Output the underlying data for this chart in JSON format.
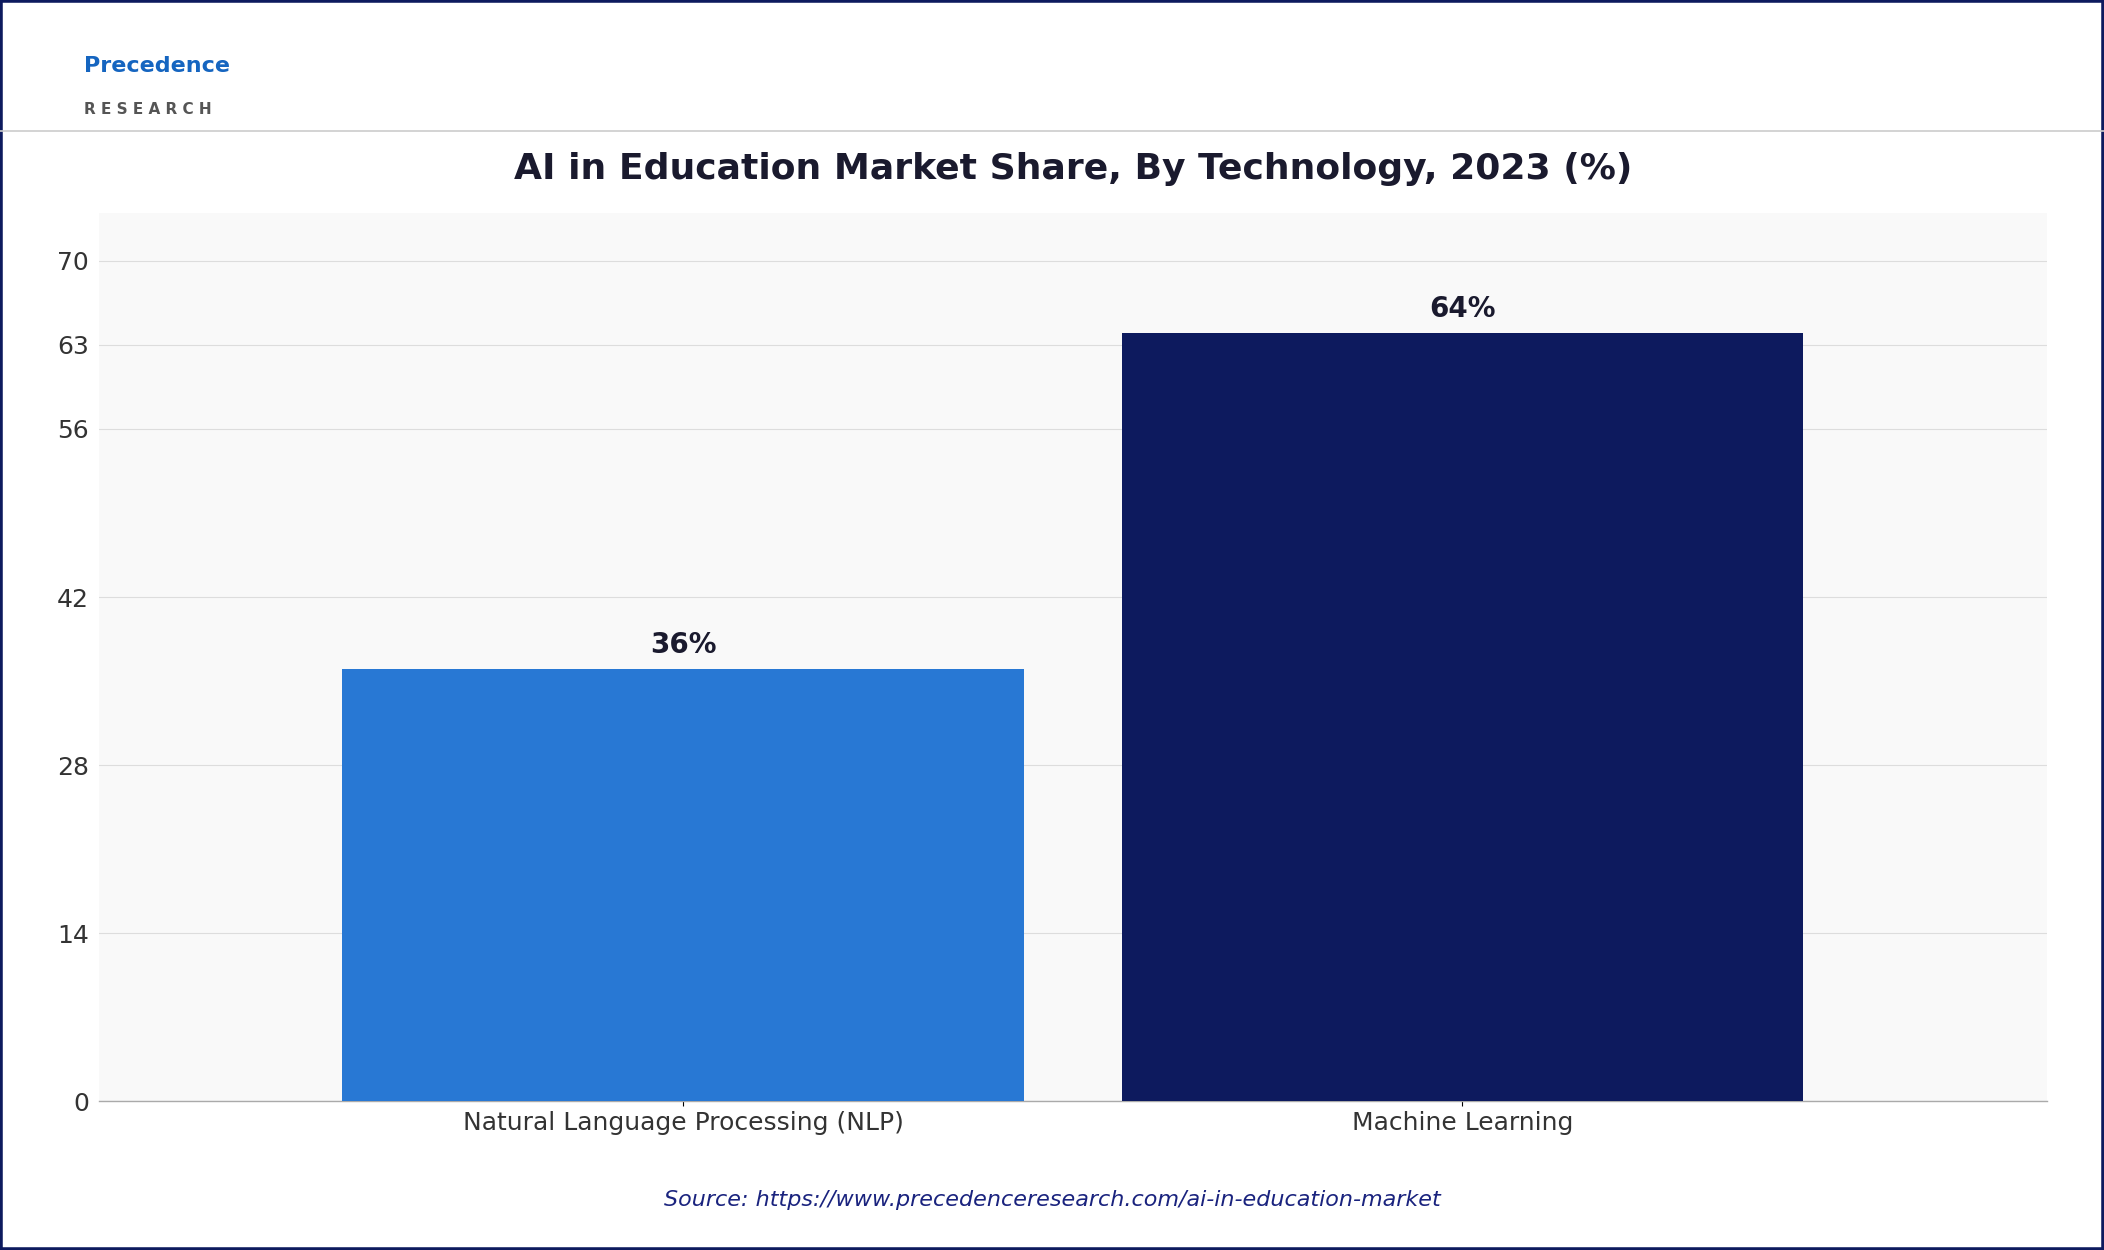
{
  "title": "AI in Education Market Share, By Technology, 2023 (%)",
  "categories": [
    "Natural Language Processing (NLP)",
    "Machine Learning"
  ],
  "values": [
    36,
    64
  ],
  "bar_colors": [
    "#2878d4",
    "#0d1a5e"
  ],
  "value_labels": [
    "36%",
    "64%"
  ],
  "yticks": [
    0,
    14,
    28,
    42,
    56,
    63,
    70
  ],
  "ylim": [
    0,
    74
  ],
  "background_color": "#ffffff",
  "plot_bg_color": "#f9f9f9",
  "grid_color": "#dddddd",
  "title_fontsize": 26,
  "tick_fontsize": 18,
  "label_fontsize": 18,
  "value_fontsize": 20,
  "source_text": "Source: https://www.precedenceresearch.com/ai-in-education-market",
  "source_color": "#1a237e",
  "source_fontsize": 16,
  "border_color": "#0d1a5e",
  "bar_width": 0.35,
  "logo_precedence_color": "#1565C0",
  "logo_research_color": "#555555"
}
